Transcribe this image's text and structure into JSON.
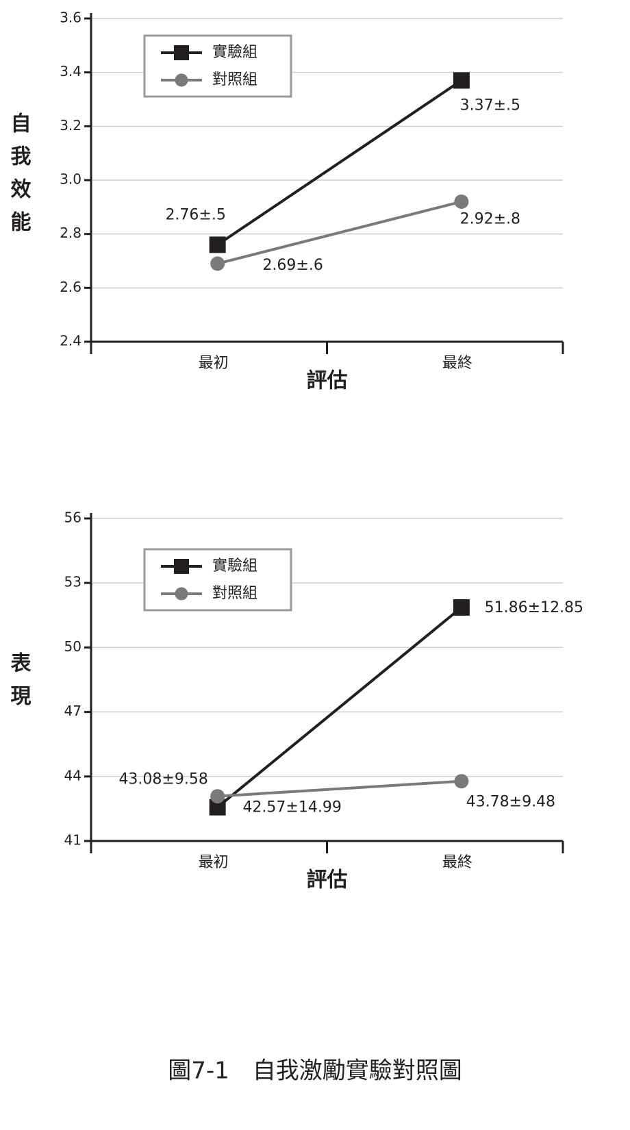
{
  "chart_data": [
    {
      "type": "line",
      "y_label": "自我效能",
      "x_label": "評估",
      "categories": [
        "最初",
        "最終"
      ],
      "series": [
        {
          "name": "實驗組",
          "color": "#231f20",
          "marker": "square",
          "values": [
            2.76,
            3.37
          ],
          "value_labels": [
            "2.76±.5",
            "3.37±.5"
          ]
        },
        {
          "name": "對照組",
          "color": "#7a7a7a",
          "marker": "circle",
          "values": [
            2.69,
            2.92
          ],
          "value_labels": [
            "2.69±.6",
            "2.92±.8"
          ]
        }
      ],
      "ylim": [
        2.4,
        3.6
      ],
      "yticks": [
        2.4,
        2.6,
        2.8,
        {
          "value": 3,
          "label": "3.0"
        },
        3.2,
        3.4,
        3.6
      ],
      "grid": true,
      "legend": "upper-left"
    },
    {
      "type": "line",
      "y_label": "表現",
      "x_label": "評估",
      "categories": [
        "最初",
        "最終"
      ],
      "series": [
        {
          "name": "實驗組",
          "color": "#231f20",
          "marker": "square",
          "values": [
            42.57,
            51.86
          ],
          "value_labels": [
            "42.57±14.99",
            "51.86±12.85"
          ]
        },
        {
          "name": "對照組",
          "color": "#7a7a7a",
          "marker": "circle",
          "values": [
            43.08,
            43.78
          ],
          "value_labels": [
            "43.08±9.58",
            "43.78±9.48"
          ]
        }
      ],
      "ylim": [
        41,
        56
      ],
      "yticks": [
        41,
        44,
        47,
        50,
        53,
        56
      ],
      "grid": true,
      "legend": "upper-left"
    }
  ],
  "caption": "圖7-1　自我激勵實驗對照圖"
}
